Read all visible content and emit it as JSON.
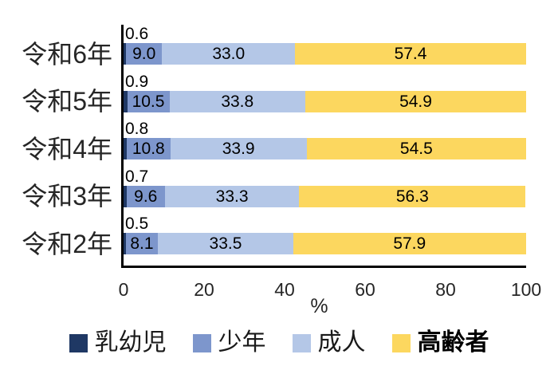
{
  "chart_data": {
    "type": "bar",
    "orientation": "horizontal",
    "stacked": true,
    "title": "",
    "xlabel": "%",
    "xlim": [
      0,
      100
    ],
    "x_ticks": [
      0,
      20,
      40,
      60,
      80,
      100
    ],
    "grid": false,
    "legend_position": "bottom",
    "categories": [
      "令和6年",
      "令和5年",
      "令和4年",
      "令和3年",
      "令和2年"
    ],
    "series": [
      {
        "id": "infants",
        "name": "乳幼児",
        "color": "#1F3864",
        "label_outside": true,
        "bold_legend": false,
        "values": [
          0.6,
          0.9,
          0.8,
          0.7,
          0.5
        ]
      },
      {
        "id": "juveniles",
        "name": "少年",
        "color": "#7D96CC",
        "label_outside": false,
        "bold_legend": false,
        "values": [
          9.0,
          10.5,
          10.8,
          9.6,
          8.1
        ]
      },
      {
        "id": "adults",
        "name": "成人",
        "color": "#B4C7E7",
        "label_outside": false,
        "bold_legend": false,
        "values": [
          33.0,
          33.8,
          33.9,
          33.3,
          33.5
        ]
      },
      {
        "id": "elderly",
        "name": "高齢者",
        "color": "#FCD75F",
        "label_outside": false,
        "bold_legend": true,
        "values": [
          57.4,
          54.9,
          54.5,
          56.3,
          57.9
        ]
      }
    ]
  }
}
